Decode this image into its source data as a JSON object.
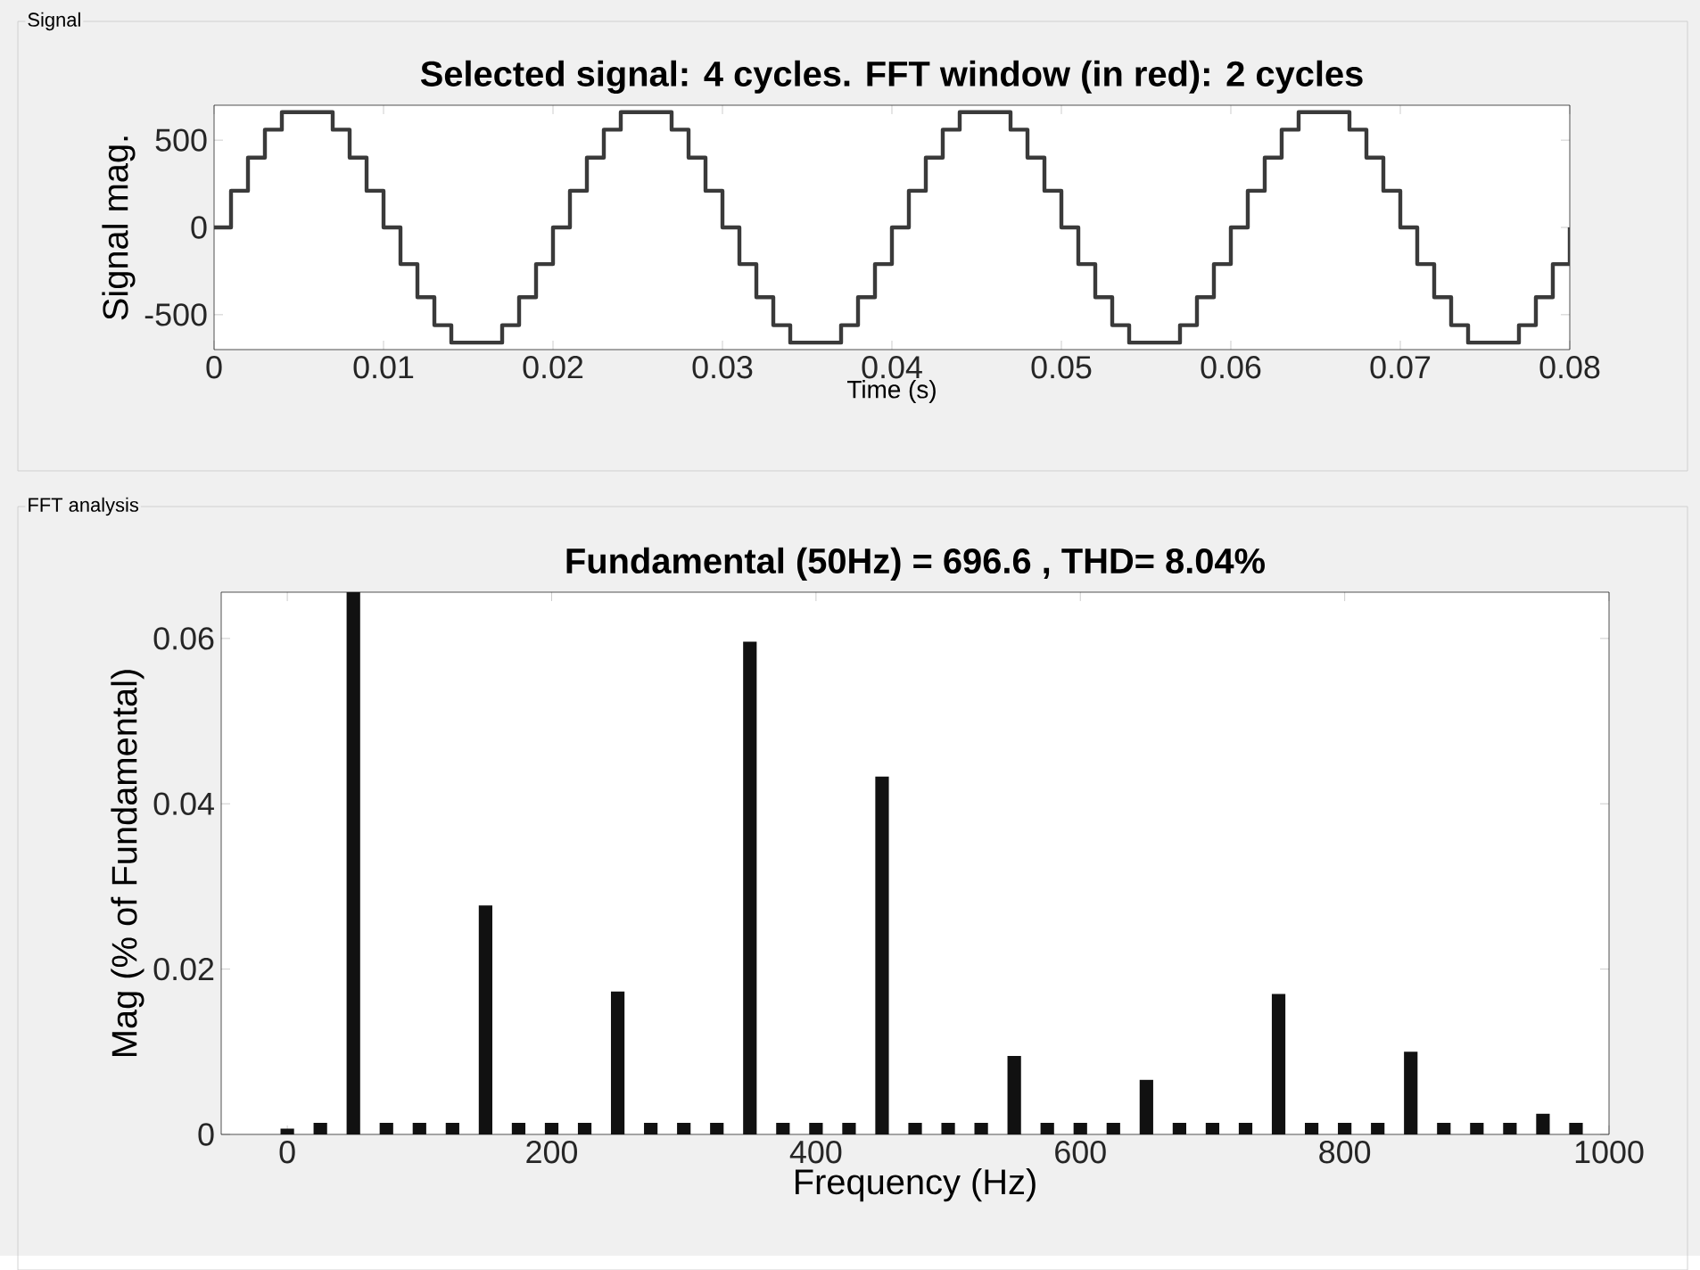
{
  "chart_data": [
    {
      "type": "step",
      "title": "Selected signal: 4 cycles. FFT window (in red): 2 cycles",
      "xlabel": "Time (s)",
      "ylabel": "Signal mag.",
      "annotations": [
        "Signal"
      ],
      "x": [
        0,
        0.001,
        0.002,
        0.003,
        0.004,
        0.005,
        0.006,
        0.007,
        0.008,
        0.009,
        0.01,
        0.011,
        0.012,
        0.013,
        0.014,
        0.015,
        0.016,
        0.017,
        0.018,
        0.019,
        0.02,
        0.021,
        0.022,
        0.023,
        0.024,
        0.025,
        0.026,
        0.027,
        0.028,
        0.029,
        0.03,
        0.031,
        0.032,
        0.033,
        0.034,
        0.035,
        0.036,
        0.037,
        0.038,
        0.039,
        0.04,
        0.041,
        0.042,
        0.043,
        0.044,
        0.045,
        0.046,
        0.047,
        0.048,
        0.049,
        0.05,
        0.051,
        0.052,
        0.053,
        0.054,
        0.055,
        0.056,
        0.057,
        0.058,
        0.059,
        0.06,
        0.061,
        0.062,
        0.063,
        0.064,
        0.065,
        0.066,
        0.067,
        0.068,
        0.069,
        0.07,
        0.071,
        0.072,
        0.073,
        0.074,
        0.075,
        0.076,
        0.077,
        0.078,
        0.079,
        0.08
      ],
      "values": [
        0,
        210,
        400,
        560,
        660,
        660,
        660,
        560,
        400,
        210,
        0,
        -210,
        -400,
        -560,
        -660,
        -660,
        -660,
        -560,
        -400,
        -210,
        0,
        210,
        400,
        560,
        660,
        660,
        660,
        560,
        400,
        210,
        0,
        -210,
        -400,
        -560,
        -660,
        -660,
        -660,
        -560,
        -400,
        -210,
        0,
        210,
        400,
        560,
        660,
        660,
        660,
        560,
        400,
        210,
        0,
        -210,
        -400,
        -560,
        -660,
        -660,
        -660,
        -560,
        -400,
        -210,
        0,
        210,
        400,
        560,
        660,
        660,
        660,
        560,
        400,
        210,
        0,
        -210,
        -400,
        -560,
        -660,
        -660,
        -660,
        -560,
        -400,
        -210,
        0
      ],
      "color": "#3a3a3a",
      "xlim": [
        0,
        0.08
      ],
      "ylim": [
        -700,
        700
      ],
      "xticks": [
        0,
        0.01,
        0.02,
        0.03,
        0.04,
        0.05,
        0.06,
        0.07,
        0.08
      ],
      "yticks": [
        -500,
        0,
        500
      ]
    },
    {
      "type": "bar",
      "title": "Fundamental (50Hz) = 696.6 , THD= 8.04%",
      "xlabel": "Frequency (Hz)",
      "ylabel": "Mag (% of Fundamental)",
      "annotations": [
        "FFT analysis"
      ],
      "x": [
        0,
        25,
        50,
        75,
        100,
        125,
        150,
        175,
        200,
        225,
        250,
        275,
        300,
        325,
        350,
        375,
        400,
        425,
        450,
        475,
        500,
        525,
        550,
        575,
        600,
        625,
        650,
        675,
        700,
        725,
        750,
        775,
        800,
        825,
        850,
        875,
        900,
        925,
        950,
        975
      ],
      "values": [
        0.0007,
        0.0014,
        0.0656,
        0.0014,
        0.0014,
        0.0014,
        0.0277,
        0.0014,
        0.0014,
        0.0014,
        0.0173,
        0.0014,
        0.0014,
        0.0014,
        0.0596,
        0.0014,
        0.0014,
        0.0014,
        0.0433,
        0.0014,
        0.0014,
        0.0014,
        0.0095,
        0.0014,
        0.0014,
        0.0014,
        0.0066,
        0.0014,
        0.0014,
        0.0014,
        0.017,
        0.0014,
        0.0014,
        0.0014,
        0.01,
        0.0014,
        0.0014,
        0.0014,
        0.0025,
        0.0014
      ],
      "color": "#111111",
      "xlim": [
        -50,
        1000
      ],
      "ylim": [
        0,
        0.0656
      ],
      "xticks": [
        0,
        200,
        400,
        600,
        800,
        1000
      ],
      "yticks": [
        0,
        0.02,
        0.04,
        0.06
      ]
    }
  ]
}
